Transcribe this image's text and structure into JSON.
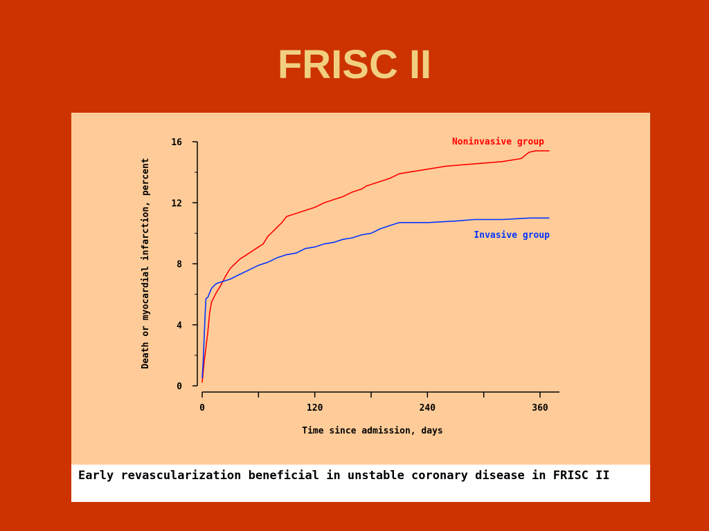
{
  "slide": {
    "title": "FRISC II",
    "caption": "Early revascularization beneficial in unstable coronary disease in FRISC II"
  },
  "colors": {
    "background": "#cc3300",
    "title": "#f0d080",
    "panel": "#ffcc99",
    "noninvasive": "#ff0000",
    "invasive": "#0033ff"
  },
  "chart_data": {
    "type": "line",
    "title": "",
    "xlabel": "Time since admission, days",
    "ylabel": "Death or myocardial infarction, percent",
    "xlim": [
      0,
      360
    ],
    "ylim": [
      0,
      16
    ],
    "xticks": [
      0,
      120,
      240,
      360
    ],
    "yticks": [
      0,
      4,
      8,
      12,
      16
    ],
    "grid": false,
    "series": [
      {
        "name": "Noninvasive group",
        "color": "#ff0000",
        "points": [
          [
            0,
            0.2
          ],
          [
            2,
            1.5
          ],
          [
            4,
            2.5
          ],
          [
            6,
            3.5
          ],
          [
            8,
            4.8
          ],
          [
            10,
            5.5
          ],
          [
            15,
            6.1
          ],
          [
            20,
            6.6
          ],
          [
            25,
            7.2
          ],
          [
            30,
            7.7
          ],
          [
            35,
            8.0
          ],
          [
            40,
            8.3
          ],
          [
            50,
            8.7
          ],
          [
            60,
            9.1
          ],
          [
            65,
            9.3
          ],
          [
            70,
            9.8
          ],
          [
            75,
            10.1
          ],
          [
            80,
            10.4
          ],
          [
            85,
            10.7
          ],
          [
            90,
            11.1
          ],
          [
            95,
            11.2
          ],
          [
            100,
            11.3
          ],
          [
            110,
            11.5
          ],
          [
            120,
            11.7
          ],
          [
            130,
            12.0
          ],
          [
            140,
            12.2
          ],
          [
            150,
            12.4
          ],
          [
            160,
            12.7
          ],
          [
            170,
            12.9
          ],
          [
            175,
            13.1
          ],
          [
            180,
            13.2
          ],
          [
            190,
            13.4
          ],
          [
            200,
            13.6
          ],
          [
            210,
            13.9
          ],
          [
            220,
            14.0
          ],
          [
            240,
            14.2
          ],
          [
            260,
            14.4
          ],
          [
            280,
            14.5
          ],
          [
            300,
            14.6
          ],
          [
            320,
            14.7
          ],
          [
            340,
            14.9
          ],
          [
            348,
            15.3
          ],
          [
            355,
            15.4
          ],
          [
            370,
            15.4
          ]
        ]
      },
      {
        "name": "Invasive group",
        "color": "#0033ff",
        "points": [
          [
            0,
            0.5
          ],
          [
            1,
            1.5
          ],
          [
            2,
            3.0
          ],
          [
            3,
            4.5
          ],
          [
            4,
            5.7
          ],
          [
            6,
            5.8
          ],
          [
            8,
            6.1
          ],
          [
            10,
            6.4
          ],
          [
            15,
            6.7
          ],
          [
            20,
            6.8
          ],
          [
            30,
            7.0
          ],
          [
            40,
            7.3
          ],
          [
            50,
            7.6
          ],
          [
            60,
            7.9
          ],
          [
            70,
            8.1
          ],
          [
            80,
            8.4
          ],
          [
            90,
            8.6
          ],
          [
            100,
            8.7
          ],
          [
            110,
            9.0
          ],
          [
            120,
            9.1
          ],
          [
            130,
            9.3
          ],
          [
            140,
            9.4
          ],
          [
            150,
            9.6
          ],
          [
            160,
            9.7
          ],
          [
            170,
            9.9
          ],
          [
            180,
            10.0
          ],
          [
            190,
            10.3
          ],
          [
            200,
            10.5
          ],
          [
            210,
            10.7
          ],
          [
            240,
            10.7
          ],
          [
            270,
            10.8
          ],
          [
            290,
            10.9
          ],
          [
            320,
            10.9
          ],
          [
            350,
            11.0
          ],
          [
            370,
            11.0
          ]
        ]
      }
    ]
  }
}
